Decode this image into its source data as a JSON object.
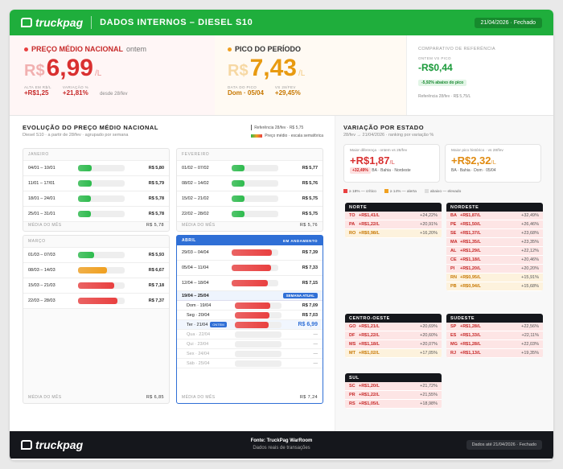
{
  "header": {
    "brand": "truckpag",
    "title": "DADOS INTERNOS – DIESEL S10",
    "date_pill": "21/04/2026 · Fechado"
  },
  "kpi": {
    "national": {
      "title": "PREÇO MÉDIO NACIONAL",
      "qualifier": "ontem",
      "currency": "R$",
      "value": "6,99",
      "unit": "/L",
      "alta_label": "ALTA EM R$/L",
      "alta_value": "+R$1,25",
      "var_label": "VARIAÇÃO %",
      "var_value": "+21,81%",
      "since": "desde 28/fev"
    },
    "peak": {
      "title": "PICO DO PERÍODO",
      "currency": "R$",
      "value": "7,43",
      "unit": "/L",
      "date_label": "DATA DO PICO",
      "date_value": "Dom · 05/04",
      "vs_label": "VS 28/FEV",
      "vs_value": "+29,45%"
    },
    "ref": {
      "title": "COMPARATIVO DE REFERÊNCIA",
      "sub": "ONTEM VS PICO",
      "value": "-R$0,44",
      "badge": "-5,92% abaixo do pico",
      "foot": "Referência 28/fev · R$ 5,75/L"
    }
  },
  "evolution": {
    "title": "EVOLUÇÃO DO PREÇO MÉDIO NACIONAL",
    "subtitle": "Diesel S10 · a partir de 28/fev · agrupado por semana",
    "legend_ref": "Referência 28/fev · R$ 5,75",
    "legend_scale": "Preço médio · escala semafórica",
    "month_avg_label": "MÉDIA DO MÊS",
    "colors": {
      "green": "#2dbb4d",
      "orange": "#f0a020",
      "red": "#e94040"
    },
    "jan": {
      "name": "JANEIRO",
      "avg": "R$ 5,78",
      "weeks": [
        {
          "label": "04/01 – 10/01",
          "price": "R$ 5,80",
          "level": 0.3,
          "color": "green"
        },
        {
          "label": "11/01 – 17/01",
          "price": "R$ 5,79",
          "level": 0.29,
          "color": "green"
        },
        {
          "label": "18/01 – 24/01",
          "price": "R$ 5,78",
          "level": 0.28,
          "color": "green"
        },
        {
          "label": "25/01 – 31/01",
          "price": "R$ 5,78",
          "level": 0.28,
          "color": "green"
        }
      ]
    },
    "fev": {
      "name": "FEVEREIRO",
      "avg": "R$ 5,76",
      "weeks": [
        {
          "label": "01/02 – 07/02",
          "price": "R$ 5,77",
          "level": 0.28,
          "color": "green"
        },
        {
          "label": "08/02 – 14/02",
          "price": "R$ 5,76",
          "level": 0.27,
          "color": "green"
        },
        {
          "label": "15/02 – 21/02",
          "price": "R$ 5,75",
          "level": 0.27,
          "color": "green"
        },
        {
          "label": "22/02 – 28/02",
          "price": "R$ 5,75",
          "level": 0.27,
          "color": "green"
        }
      ]
    },
    "mar": {
      "name": "MARÇO",
      "avg": "R$ 6,85",
      "weeks": [
        {
          "label": "01/03 – 07/03",
          "price": "R$ 5,93",
          "level": 0.35,
          "color": "green"
        },
        {
          "label": "08/03 – 14/03",
          "price": "R$ 6,67",
          "level": 0.62,
          "color": "orange"
        },
        {
          "label": "15/03 – 21/03",
          "price": "R$ 7,18",
          "level": 0.78,
          "color": "red"
        },
        {
          "label": "22/03 – 28/03",
          "price": "R$ 7,37",
          "level": 0.85,
          "color": "red"
        }
      ]
    },
    "abr": {
      "name": "ABRIL",
      "status": "EM ANDAMENTO",
      "avg": "R$ 7,24",
      "weeks": [
        {
          "label": "29/03 – 04/04",
          "price": "R$ 7,39",
          "level": 0.86,
          "color": "red"
        },
        {
          "label": "05/04 – 11/04",
          "price": "R$ 7,33",
          "level": 0.84,
          "color": "red"
        },
        {
          "label": "12/04 – 18/04",
          "price": "R$ 7,15",
          "level": 0.78,
          "color": "red"
        }
      ],
      "current_week": {
        "label": "19/04 – 25/04",
        "tag": "SEMANA ATUAL",
        "days": [
          {
            "label": "Dom · 19/04",
            "price": "R$ 7,09",
            "level": 0.76,
            "color": "red"
          },
          {
            "label": "Seg · 20/04",
            "price": "R$ 7,03",
            "level": 0.74,
            "color": "red"
          },
          {
            "label": "Ter · 21/04",
            "price": "R$ 6,99",
            "level": 0.72,
            "color": "red",
            "tag": "ONTEM"
          },
          {
            "label": "Qua · 22/04",
            "price": "—"
          },
          {
            "label": "Qui · 23/04",
            "price": "—"
          },
          {
            "label": "Sex · 24/04",
            "price": "—"
          },
          {
            "label": "Sáb · 25/04",
            "price": "—"
          }
        ]
      }
    }
  },
  "states": {
    "title": "VARIAÇÃO POR ESTADO",
    "subtitle": "28/fev → 21/04/2026 · ranking por variação %",
    "card1": {
      "label": "Maior diferença · ontem vs 28/fev",
      "value": "+R$1,87",
      "unit": "/L",
      "badge": "+32,49%",
      "sub": "BA · Bahia · Nordeste"
    },
    "card2": {
      "label": "Maior pico histórico · vs 28/fev",
      "value": "+R$2,32",
      "unit": "/L",
      "sub": "BA · Bahia · Dom · 05/04"
    },
    "thresholds": [
      {
        "label": "≥ 18% — crítico",
        "color": "#e94040"
      },
      {
        "label": "≥ 14% — alerta",
        "color": "#f0a020"
      },
      {
        "label": "abaixo — elevado",
        "color": "#dddddd"
      }
    ],
    "regions": {
      "norte": {
        "name": "NORTE",
        "rows": [
          {
            "uf": "TO",
            "val": "+R$1,41/L",
            "pct": "+24,22%",
            "lvl": "crit"
          },
          {
            "uf": "PA",
            "val": "+R$1,22/L",
            "pct": "+20,91%",
            "lvl": "crit"
          },
          {
            "uf": "RO",
            "val": "+R$0,98/L",
            "pct": "+16,20%",
            "lvl": "alert"
          }
        ]
      },
      "nordeste": {
        "name": "NORDESTE",
        "rows": [
          {
            "uf": "BA",
            "val": "+R$1,87/L",
            "pct": "+32,49%",
            "lvl": "crit"
          },
          {
            "uf": "PE",
            "val": "+R$1,50/L",
            "pct": "+26,46%",
            "lvl": "crit"
          },
          {
            "uf": "SE",
            "val": "+R$1,37/L",
            "pct": "+23,68%",
            "lvl": "crit"
          },
          {
            "uf": "MA",
            "val": "+R$1,35/L",
            "pct": "+23,35%",
            "lvl": "crit"
          },
          {
            "uf": "AL",
            "val": "+R$1,29/L",
            "pct": "+22,12%",
            "lvl": "crit"
          },
          {
            "uf": "CE",
            "val": "+R$1,18/L",
            "pct": "+20,46%",
            "lvl": "crit"
          },
          {
            "uf": "PI",
            "val": "+R$1,20/L",
            "pct": "+20,20%",
            "lvl": "crit"
          },
          {
            "uf": "RN",
            "val": "+R$0,95/L",
            "pct": "+15,91%",
            "lvl": "alert"
          },
          {
            "uf": "PB",
            "val": "+R$0,94/L",
            "pct": "+15,68%",
            "lvl": "alert"
          }
        ]
      },
      "centro": {
        "name": "CENTRO-OESTE",
        "rows": [
          {
            "uf": "GO",
            "val": "+R$1,21/L",
            "pct": "+20,69%",
            "lvl": "crit"
          },
          {
            "uf": "DF",
            "val": "+R$1,22/L",
            "pct": "+20,60%",
            "lvl": "crit"
          },
          {
            "uf": "MS",
            "val": "+R$1,18/L",
            "pct": "+20,07%",
            "lvl": "crit"
          },
          {
            "uf": "MT",
            "val": "+R$1,02/L",
            "pct": "+17,05%",
            "lvl": "alert"
          }
        ]
      },
      "sudeste": {
        "name": "SUDESTE",
        "rows": [
          {
            "uf": "SP",
            "val": "+R$1,28/L",
            "pct": "+22,56%",
            "lvl": "crit"
          },
          {
            "uf": "ES",
            "val": "+R$1,33/L",
            "pct": "+22,11%",
            "lvl": "crit"
          },
          {
            "uf": "MG",
            "val": "+R$1,28/L",
            "pct": "+22,03%",
            "lvl": "crit"
          },
          {
            "uf": "RJ",
            "val": "+R$1,13/L",
            "pct": "+19,35%",
            "lvl": "crit"
          }
        ]
      },
      "sul": {
        "name": "SUL",
        "rows": [
          {
            "uf": "SC",
            "val": "+R$1,20/L",
            "pct": "+21,72%",
            "lvl": "crit"
          },
          {
            "uf": "PR",
            "val": "+R$1,22/L",
            "pct": "+21,55%",
            "lvl": "crit"
          },
          {
            "uf": "RS",
            "val": "+R$1,05/L",
            "pct": "+18,98%",
            "lvl": "crit"
          }
        ]
      }
    }
  },
  "footer": {
    "brand": "truckpag",
    "source": "Fonte: TruckPag WarRoom",
    "source_sub": "Dados reais de transações",
    "pill": "Dados até 21/04/2026 · Fechado"
  }
}
